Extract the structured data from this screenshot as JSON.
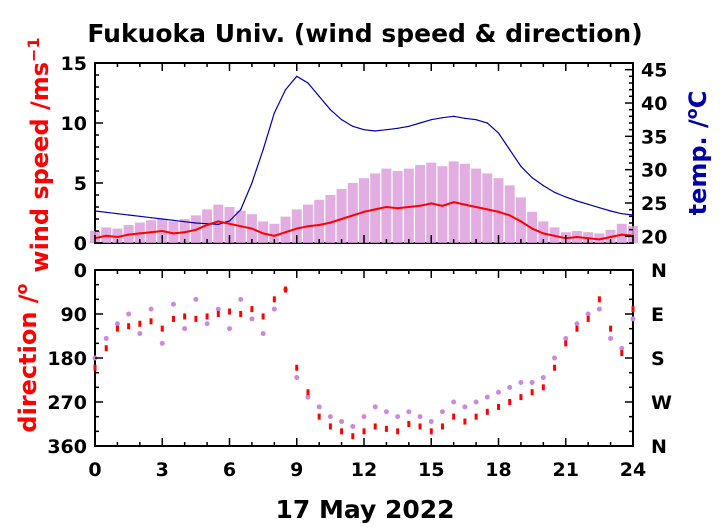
{
  "chart_data": [
    {
      "type": "line",
      "panel": "top",
      "title": "Fukuoka Univ. (wind speed & direction)",
      "ylabel": "wind speed /ms",
      "ylabel_superscript": "−1",
      "y2label": "temp. /",
      "y2label_superscript": "o",
      "y2label_unit": "C",
      "xlim": [
        0,
        24
      ],
      "ylim": [
        0,
        15
      ],
      "y2lim": [
        19,
        46
      ],
      "y_ticks": [
        "0",
        "5",
        "10",
        "15"
      ],
      "y2_ticks": [
        "20",
        "25",
        "30",
        "35",
        "40",
        "45"
      ],
      "series": [
        {
          "name": "wind speed (mean)",
          "color": "#ff0000",
          "x": [
            0,
            0.5,
            1,
            1.5,
            2,
            2.5,
            3,
            3.5,
            4,
            4.5,
            5,
            5.5,
            6,
            6.5,
            7,
            7.5,
            8,
            8.5,
            9,
            9.5,
            10,
            10.5,
            11,
            11.5,
            12,
            12.5,
            13,
            13.5,
            14,
            14.5,
            15,
            15.5,
            16,
            16.5,
            17,
            17.5,
            18,
            18.5,
            19,
            19.5,
            20,
            20.5,
            21,
            21.5,
            22,
            22.5,
            23,
            23.5,
            24
          ],
          "values": [
            0.4,
            0.6,
            0.5,
            0.7,
            0.8,
            0.9,
            1.0,
            0.8,
            0.9,
            1.1,
            1.5,
            1.8,
            1.6,
            1.4,
            1.2,
            0.8,
            0.6,
            0.9,
            1.2,
            1.4,
            1.5,
            1.7,
            2.0,
            2.3,
            2.6,
            2.8,
            3.0,
            2.9,
            3.0,
            3.1,
            3.3,
            3.1,
            3.4,
            3.2,
            3.0,
            2.8,
            2.6,
            2.3,
            1.8,
            1.2,
            0.8,
            0.6,
            0.4,
            0.5,
            0.4,
            0.3,
            0.5,
            0.7,
            0.6
          ]
        },
        {
          "name": "wind speed (gust range)",
          "color": "#dda0dd",
          "x": [
            0,
            0.5,
            1,
            1.5,
            2,
            2.5,
            3,
            3.5,
            4,
            4.5,
            5,
            5.5,
            6,
            6.5,
            7,
            7.5,
            8,
            8.5,
            9,
            9.5,
            10,
            10.5,
            11,
            11.5,
            12,
            12.5,
            13,
            13.5,
            14,
            14.5,
            15,
            15.5,
            16,
            16.5,
            17,
            17.5,
            18,
            18.5,
            19,
            19.5,
            20,
            20.5,
            21,
            21.5,
            22,
            22.5,
            23,
            23.5,
            24
          ],
          "values": [
            1.0,
            1.3,
            1.2,
            1.5,
            1.7,
            1.9,
            2.0,
            1.8,
            2.0,
            2.3,
            2.8,
            3.2,
            3.0,
            2.7,
            2.4,
            1.8,
            1.6,
            2.2,
            2.8,
            3.2,
            3.6,
            4.0,
            4.5,
            5.0,
            5.4,
            5.8,
            6.2,
            6.0,
            6.2,
            6.5,
            6.7,
            6.4,
            6.8,
            6.6,
            6.2,
            5.8,
            5.4,
            4.8,
            3.8,
            2.6,
            1.8,
            1.3,
            0.9,
            1.0,
            0.9,
            0.8,
            1.1,
            1.6,
            1.4
          ]
        },
        {
          "name": "temperature",
          "axis": "right",
          "color": "#0000aa",
          "x": [
            0,
            0.5,
            1,
            1.5,
            2,
            2.5,
            3,
            3.5,
            4,
            4.5,
            5,
            5.5,
            6,
            6.5,
            7,
            7.5,
            8,
            8.5,
            9,
            9.5,
            10,
            10.5,
            11,
            11.5,
            12,
            12.5,
            13,
            13.5,
            14,
            14.5,
            15,
            15.5,
            16,
            16.5,
            17,
            17.5,
            18,
            18.5,
            19,
            19.5,
            20,
            20.5,
            21,
            21.5,
            22,
            22.5,
            23,
            23.5,
            24
          ],
          "values": [
            23.8,
            23.6,
            23.4,
            23.2,
            23.0,
            22.8,
            22.6,
            22.4,
            22.2,
            22.0,
            21.9,
            21.8,
            22.3,
            24.0,
            28.0,
            33.0,
            38.5,
            42.0,
            44.0,
            43.0,
            41.0,
            39.0,
            37.5,
            36.5,
            36.0,
            35.8,
            36.0,
            36.2,
            36.5,
            37.0,
            37.5,
            37.8,
            38.0,
            37.7,
            37.5,
            37.0,
            35.5,
            33.0,
            30.5,
            28.8,
            27.6,
            26.6,
            25.9,
            25.3,
            24.8,
            24.3,
            23.8,
            23.4,
            23.2
          ]
        }
      ]
    },
    {
      "type": "scatter",
      "panel": "bottom",
      "ylabel": "direction /",
      "ylabel_superscript": "o",
      "xlabel": "17 May 2022",
      "xlim": [
        0,
        24
      ],
      "ylim": [
        360,
        0
      ],
      "x_ticks": [
        "0",
        "3",
        "6",
        "9",
        "12",
        "15",
        "18",
        "21",
        "24"
      ],
      "y_ticks": [
        "0",
        "90",
        "180",
        "270",
        "360"
      ],
      "y2_ticks": [
        "N",
        "E",
        "S",
        "W",
        "N"
      ],
      "series": [
        {
          "name": "wind direction (mean)",
          "color": "#ff0000",
          "x": [
            0,
            0.5,
            1,
            1.5,
            2,
            2.5,
            3,
            3.5,
            4,
            4.5,
            5,
            5.5,
            6,
            6.5,
            7,
            7.5,
            8,
            8.5,
            9,
            9.5,
            10,
            10.5,
            11,
            11.5,
            12,
            12.5,
            13,
            13.5,
            14,
            14.5,
            15,
            15.5,
            16,
            16.5,
            17,
            17.5,
            18,
            18.5,
            19,
            19.5,
            20,
            20.5,
            21,
            21.5,
            22,
            22.5,
            23,
            23.5,
            24
          ],
          "values": [
            200,
            160,
            120,
            115,
            110,
            105,
            120,
            100,
            95,
            100,
            95,
            90,
            85,
            90,
            80,
            95,
            60,
            40,
            200,
            250,
            300,
            320,
            330,
            340,
            330,
            320,
            325,
            330,
            315,
            320,
            330,
            320,
            300,
            310,
            300,
            290,
            280,
            270,
            260,
            250,
            240,
            200,
            150,
            120,
            100,
            60,
            120,
            170,
            80
          ]
        },
        {
          "name": "wind direction (samples)",
          "color": "#cc88dd",
          "x": [
            0,
            0.5,
            1,
            1.5,
            2,
            2.5,
            3,
            3.5,
            4,
            4.5,
            5,
            5.5,
            6,
            6.5,
            7,
            7.5,
            8,
            8.5,
            9,
            9.5,
            10,
            10.5,
            11,
            11.5,
            12,
            12.5,
            13,
            13.5,
            14,
            14.5,
            15,
            15.5,
            16,
            16.5,
            17,
            17.5,
            18,
            18.5,
            19,
            19.5,
            20,
            20.5,
            21,
            21.5,
            22,
            22.5,
            23,
            23.5,
            24
          ],
          "values": [
            180,
            140,
            110,
            90,
            130,
            80,
            150,
            70,
            120,
            60,
            110,
            80,
            120,
            60,
            100,
            130,
            80,
            40,
            220,
            260,
            280,
            300,
            310,
            320,
            300,
            280,
            290,
            300,
            290,
            300,
            310,
            290,
            270,
            280,
            270,
            260,
            250,
            240,
            230,
            230,
            220,
            180,
            140,
            110,
            90,
            80,
            140,
            160,
            100
          ]
        }
      ]
    }
  ]
}
